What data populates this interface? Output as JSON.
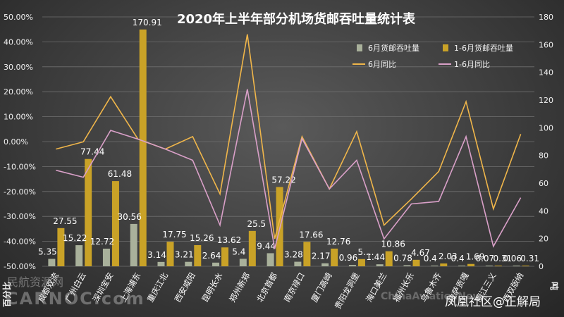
{
  "chart_data": {
    "type": "bar",
    "title": "2020年上半年部分机场货邮吞吐量统计表",
    "ylabel_left": "百分比",
    "ylabel_right": "吨",
    "y_left_range": [
      -0.5,
      0.5
    ],
    "y_left_ticks": [
      "50.00%",
      "40.00%",
      "30.00%",
      "20.00%",
      "10.00%",
      "0.00%",
      "-10.00%",
      "-20.00%",
      "-30.00%",
      "-40.00%",
      "-50.00%"
    ],
    "y_right_range": [
      0,
      180
    ],
    "y_right_ticks": [
      "0",
      "20",
      "40",
      "60",
      "80",
      "100",
      "120",
      "140",
      "160",
      "180"
    ],
    "legend_position": "top-right",
    "categories": [
      "成都双流",
      "广州白云",
      "深圳宝安",
      "上海浦东",
      "重庆江北",
      "西安咸阳",
      "昆明长水",
      "郑州新郑",
      "北京首都",
      "南京禄口",
      "厦门高崎",
      "贵阳龙洞堡",
      "海口美兰",
      "福州长乐",
      "乌鲁木齐",
      "拉萨贡嘎",
      "丽江三义",
      "西双版纳"
    ],
    "series": [
      {
        "name": "6月货邮吞吐量",
        "color": "#a9b19b",
        "type": "bar",
        "values": [
          5.35,
          15.22,
          12.72,
          30.56,
          3.14,
          3.21,
          2.64,
          5.4,
          9.44,
          3.28,
          2.17,
          0.96,
          1.44,
          0.78,
          0.4,
          0.4,
          0.07,
          0.06
        ],
        "labels": [
          "5.35",
          "15.22",
          "12.72",
          "30.56",
          "3.14",
          "3.21",
          "2.64",
          "5.4",
          "9.44",
          "3.28",
          "2.17",
          "0.96",
          "1.44",
          "0.78",
          "0.4",
          "0.4",
          "0.07",
          "0.06"
        ]
      },
      {
        "name": "1-6月货邮吞吐量",
        "color": "#c9a227",
        "type": "bar",
        "values": [
          27.55,
          77.44,
          61.48,
          170.91,
          17.75,
          15.26,
          13.62,
          25.5,
          57.22,
          17.66,
          12.76,
          5.2,
          10.86,
          4.67,
          2.03,
          1.69,
          0.31,
          0.31
        ],
        "labels": [
          "27.55",
          "77.44",
          "61.48",
          "170.91",
          "17.75",
          "15.26",
          "13.62",
          "25.5",
          "57.22",
          "17.66",
          "12.76",
          "5....",
          "10.86",
          "4.67",
          "2.03",
          "1.69",
          "0.31",
          "0.31"
        ]
      },
      {
        "name": "6月同比",
        "color": "#f0b64a",
        "type": "line",
        "values": [
          -0.03,
          -0.001,
          0.18,
          0.01,
          -0.03,
          0.02,
          -0.21,
          0.43,
          -0.39,
          0.02,
          -0.19,
          0.04,
          -0.335,
          -0.23,
          -0.12,
          0.16,
          -0.27,
          0.03
        ]
      },
      {
        "name": "1-6月同比",
        "color": "#d9a0c8",
        "type": "line",
        "values": [
          -0.115,
          -0.143,
          0.045,
          0.01,
          -0.03,
          -0.075,
          -0.335,
          0.21,
          -0.43,
          0.012,
          -0.19,
          -0.075,
          -0.39,
          -0.25,
          -0.24,
          0.02,
          -0.42,
          -0.225
        ]
      }
    ]
  },
  "watermarks": {
    "left_cn": "民航资源网",
    "left_en": "CARNOC.com",
    "mid_en": "ChinaAviationNews",
    "right": "凤凰社区@正解局"
  }
}
